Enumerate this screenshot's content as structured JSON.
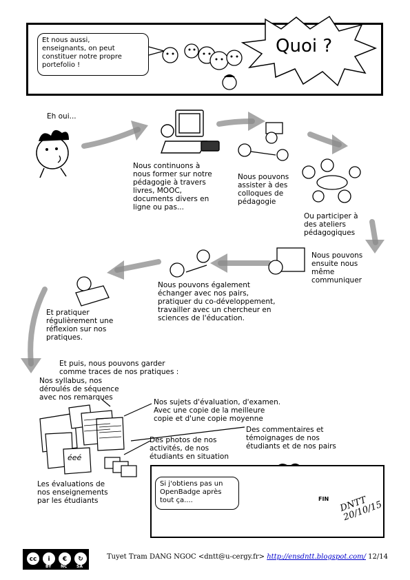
{
  "top_panel": {
    "bubble_text": "Et nous aussi,\nenseignants, on peut\nconstituer notre propre\nportefolio !",
    "burst_text": "Quoi ?"
  },
  "flow": {
    "eh_oui": "Eh oui...",
    "former": "Nous continuons à\nnous former sur notre\npédagogie à travers\nlivres, MOOC,\ndocuments divers en\nligne ou pas...",
    "colloques": "Nous pouvons\nassister à des\ncolloques de\npédagogie",
    "ateliers": "Ou participer à\ndes ateliers\npédagogiques",
    "communiquer": "Nous pouvons\nensuite nous\nmême\ncommuniquer",
    "echanger": "Nous pouvons également\néchanger avec nos pairs,\npratiquer du co-développement,\ntravailler avec un chercheur en\nsciences de l'éducation.",
    "reflexion": "Et pratiquer\nrégulièrement une\nréflexion sur nos\npratiques."
  },
  "traces": {
    "intro": "Et puis, nous pouvons garder\ncomme traces de nos pratiques :",
    "syllabus": "Nos syllabus, nos\ndéroulés de séquence\navec nos remarques",
    "sujets": "Nos sujets d'évaluation, d'examen.\nAvec une copie de la meilleure\ncopie et d'une copie moyenne",
    "commentaires": "Des commentaires et\ntémoignages de nos\nétudiants et de nos pairs",
    "photos": "Des photos de nos\nactivités, de nos\nétudiants en situation",
    "evaluations": "Les évaluations de\nnos enseignements\npar les étudiants",
    "sheet_label": "éeé"
  },
  "end_panel": {
    "bubble_text": "Si j'obtiens pas un\nOpenBadge après\ntout ça....",
    "shield_text": "FIN",
    "signature": "DNTT\n20/10/15"
  },
  "footer": {
    "author": "Tuyet Tram DANG NGOC <dntt@u-cergy.fr>",
    "link": "http://ensdntt.blogspot.com/",
    "page": "12/14",
    "cc_labels": [
      "BY",
      "NC",
      "SA"
    ],
    "cc_icons": [
      "cc-icon",
      "person-icon",
      "nc-icon",
      "sa-icon"
    ]
  }
}
